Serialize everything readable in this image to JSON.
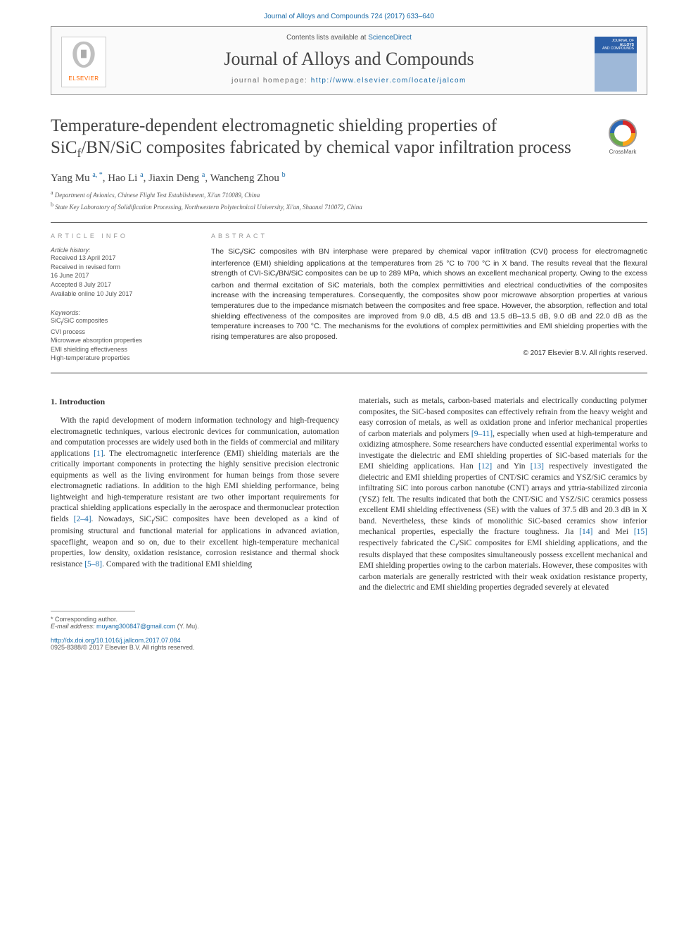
{
  "header": {
    "citation": "Journal of Alloys and Compounds 724 (2017) 633–640",
    "contents_avail_prefix": "Contents lists available at ",
    "contents_avail_link": "ScienceDirect",
    "journal_name": "Journal of Alloys and Compounds",
    "homepage_prefix": "journal homepage: ",
    "homepage_url": "http://www.elsevier.com/locate/jalcom",
    "elsevier_label": "ELSEVIER",
    "cover_text_1": "JOURNAL OF",
    "cover_text_2": "ALLOYS",
    "cover_text_3": "AND COMPOUNDS"
  },
  "crossmark": "CrossMark",
  "title_html": "Temperature-dependent electromagnetic shielding properties of SiC<span class='subf'>f</span>/BN/SiC composites fabricated by chemical vapor infiltration process",
  "authors_html": "Yang Mu <sup>a, *</sup>, Hao Li <sup>a</sup>, Jiaxin Deng <sup>a</sup>, Wancheng Zhou <sup>b</sup>",
  "affiliations": [
    "a Department of Avionics, Chinese Flight Test Establishment, Xi'an 710089, China",
    "b State Key Laboratory of Solidification Processing, Northwestern Polytechnical University, Xi'an, Shaanxi 710072, China"
  ],
  "info": {
    "heading": "ARTICLE INFO",
    "history_label": "Article history:",
    "history": [
      "Received 13 April 2017",
      "Received in revised form",
      "16 June 2017",
      "Accepted 8 July 2017",
      "Available online 10 July 2017"
    ],
    "keywords_label": "Keywords:",
    "keywords": [
      "SiCf/SiC composites",
      "CVI process",
      "Microwave absorption properties",
      "EMI shielding effectiveness",
      "High-temperature properties"
    ]
  },
  "abstract": {
    "heading": "ABSTRACT",
    "text_html": "The SiC<span class='subf'>f</span>/SiC composites with BN interphase were prepared by chemical vapor infiltration (CVI) process for electromagnetic interference (EMI) shielding applications at the temperatures from 25 °C to 700 °C in X band. The results reveal that the flexural strength of CVI-SiC<span class='subf'>f</span>/BN/SiC composites can be up to 289 MPa, which shows an excellent mechanical property. Owing to the excess carbon and thermal excitation of SiC materials, both the complex permittivities and electrical conductivities of the composites increase with the increasing temperatures. Consequently, the composites show poor microwave absorption properties at various temperatures due to the impedance mismatch between the composites and free space. However, the absorption, reflection and total shielding effectiveness of the composites are improved from 9.0 dB, 4.5 dB and 13.5 dB–13.5 dB, 9.0 dB and 22.0 dB as the temperature increases to 700 °C. The mechanisms for the evolutions of complex permittivities and EMI shielding properties with the rising temperatures are also proposed.",
    "copyright": "© 2017 Elsevier B.V. All rights reserved."
  },
  "body": {
    "section_heading": "1. Introduction",
    "col1_html": "With the rapid development of modern information technology and high-frequency electromagnetic techniques, various electronic devices for communication, automation and computation processes are widely used both in the fields of commercial and military applications <a href='#'>[1]</a>. The electromagnetic interference (EMI) shielding materials are the critically important components in protecting the highly sensitive precision electronic equipments as well as the living environment for human beings from those severe electromagnetic radiations. In addition to the high EMI shielding performance, being lightweight and high-temperature resistant are two other important requirements for practical shielding applications especially in the aerospace and thermonuclear protection fields <a href='#'>[2–4]</a>. Nowadays, SiC<span class='subf'>f</span>/SiC composites have been developed as a kind of promising structural and functional material for applications in advanced aviation, spaceflight, weapon and so on, due to their excellent high-temperature mechanical properties, low density, oxidation resistance, corrosion resistance and thermal shock resistance <a href='#'>[5–8]</a>. Compared with the traditional EMI shielding",
    "col2_html": "materials, such as metals, carbon-based materials and electrically conducting polymer composites, the SiC-based composites can effectively refrain from the heavy weight and easy corrosion of metals, as well as oxidation prone and inferior mechanical properties of carbon materials and polymers <a href='#'>[9–11]</a>, especially when used at high-temperature and oxidizing atmosphere. Some researchers have conducted essential experimental works to investigate the dielectric and EMI shielding properties of SiC-based materials for the EMI shielding applications. Han <a href='#'>[12]</a> and Yin <a href='#'>[13]</a> respectively investigated the dielectric and EMI shielding properties of CNT/SiC ceramics and YSZ/SiC ceramics by infiltrating SiC into porous carbon nanotube (CNT) arrays and yttria-stabilized zirconia (YSZ) felt. The results indicated that both the CNT/SiC and YSZ/SiC ceramics possess excellent EMI shielding effectiveness (SE) with the values of 37.5 dB and 20.3 dB in X band. Nevertheless, these kinds of monolithic SiC-based ceramics show inferior mechanical properties, especially the fracture toughness. Jia <a href='#'>[14]</a> and Mei <a href='#'>[15]</a> respectively fabricated the C<span class='subf'>f</span>/SiC composites for EMI shielding applications, and the results displayed that these composites simultaneously possess excellent mechanical and EMI shielding properties owing to the carbon materials. However, these composites with carbon materials are generally restricted with their weak oxidation resistance property, and the dielectric and EMI shielding properties degraded severely at elevated"
  },
  "footer": {
    "corresponding": "* Corresponding author.",
    "email_label": "E-mail address: ",
    "email": "muyang300847@gmail.com",
    "email_suffix": " (Y. Mu).",
    "doi": "http://dx.doi.org/10.1016/j.jallcom.2017.07.084",
    "issn": "0925-8388/© 2017 Elsevier B.V. All rights reserved."
  },
  "colors": {
    "link": "#1a6ba8",
    "text": "#333333",
    "muted": "#555555",
    "heading_gray": "#999999"
  }
}
